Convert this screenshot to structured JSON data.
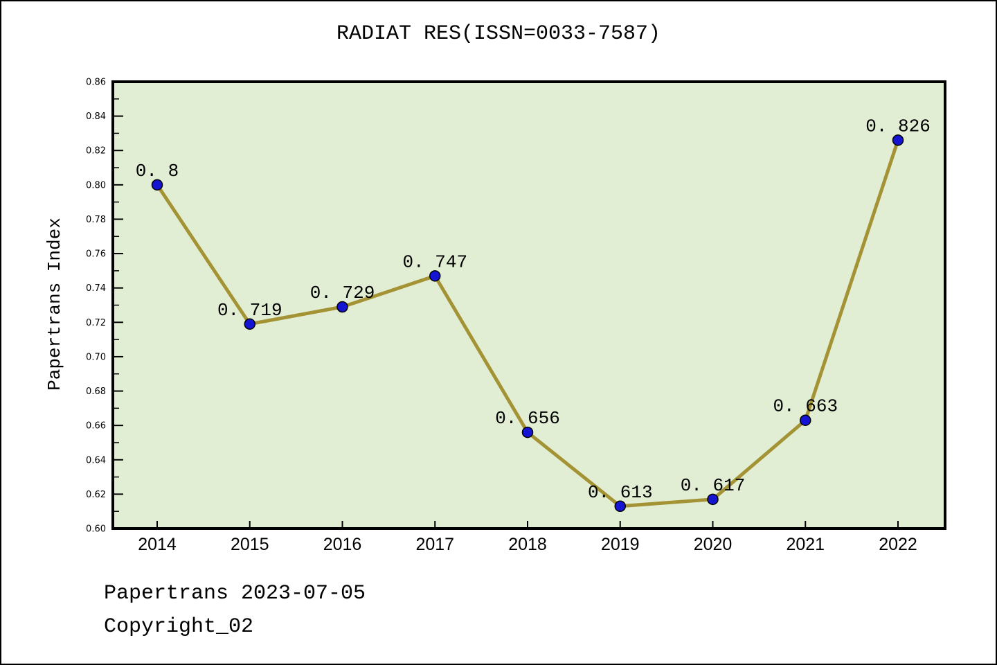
{
  "title": "RADIAT RES(ISSN=0033-7587)",
  "footer": {
    "line1": "Papertrans 2023-07-05",
    "line2": "Copyright_02"
  },
  "chart_data": {
    "type": "line",
    "title": "RADIAT RES(ISSN=0033-7587)",
    "xlabel": "",
    "ylabel": "Papertrans Index",
    "x": [
      2014,
      2015,
      2016,
      2017,
      2018,
      2019,
      2020,
      2021,
      2022
    ],
    "values": [
      0.8,
      0.719,
      0.729,
      0.747,
      0.656,
      0.613,
      0.617,
      0.663,
      0.826
    ],
    "point_labels": [
      "0. 8",
      "0. 719",
      "0. 729",
      "0. 747",
      "0. 656",
      "0. 613",
      "0. 617",
      "0. 663",
      "0. 826"
    ],
    "ylim": [
      0.6,
      0.86
    ],
    "y_major_step": 0.02,
    "y_minor_step": 0.01,
    "grid": false,
    "legend_position": "none",
    "colors": {
      "line": "#a39334",
      "marker_fill": "#1414d2",
      "marker_edge": "#000000",
      "plot_bg": "#e2eed4",
      "axis": "#000000",
      "text": "#000000",
      "page_bg": "#ffffff"
    }
  }
}
